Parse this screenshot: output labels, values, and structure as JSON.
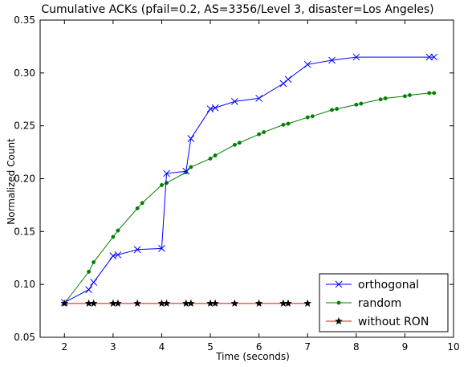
{
  "chart_data": {
    "type": "line",
    "title": "Cumulative ACKs (pfail=0.2, AS=3356/Level 3, disaster=Los Angeles)",
    "xlabel": "Time (seconds)",
    "ylabel": "Normalized Count",
    "xlim": [
      1.5,
      10
    ],
    "ylim": [
      0.05,
      0.35
    ],
    "xticks": [
      2,
      3,
      4,
      5,
      6,
      7,
      8,
      9,
      10
    ],
    "yticks": [
      0.05,
      0.1,
      0.15,
      0.2,
      0.25,
      0.3,
      0.35
    ],
    "xtick_labels": [
      "2",
      "3",
      "4",
      "5",
      "6",
      "7",
      "8",
      "9",
      "10"
    ],
    "ytick_labels": [
      "0.05",
      "0.10",
      "0.15",
      "0.20",
      "0.25",
      "0.30",
      "0.35"
    ],
    "grid": false,
    "legend_position": "lower-right",
    "series": [
      {
        "name": "orthogonal",
        "color": "#0000ff",
        "marker": "x",
        "x": [
          2.0,
          2.5,
          2.6,
          3.0,
          3.1,
          3.5,
          4.0,
          4.1,
          4.5,
          4.6,
          5.0,
          5.1,
          5.5,
          6.0,
          6.5,
          6.6,
          7.0,
          7.5,
          8.0,
          9.5,
          9.6
        ],
        "y": [
          0.083,
          0.095,
          0.102,
          0.127,
          0.128,
          0.133,
          0.134,
          0.205,
          0.207,
          0.238,
          0.266,
          0.267,
          0.273,
          0.276,
          0.29,
          0.294,
          0.308,
          0.312,
          0.315,
          0.315,
          0.315
        ]
      },
      {
        "name": "random",
        "color": "#008000",
        "marker": "dot",
        "x": [
          2.0,
          2.5,
          2.6,
          3.0,
          3.1,
          3.5,
          3.6,
          4.0,
          4.1,
          4.5,
          4.6,
          5.0,
          5.1,
          5.5,
          5.6,
          6.0,
          6.1,
          6.5,
          6.6,
          7.0,
          7.1,
          7.5,
          7.6,
          8.0,
          8.1,
          8.5,
          8.6,
          9.0,
          9.1,
          9.5,
          9.6
        ],
        "y": [
          0.082,
          0.112,
          0.121,
          0.145,
          0.151,
          0.172,
          0.177,
          0.194,
          0.196,
          0.206,
          0.211,
          0.219,
          0.222,
          0.232,
          0.234,
          0.242,
          0.244,
          0.251,
          0.252,
          0.258,
          0.259,
          0.265,
          0.266,
          0.27,
          0.271,
          0.275,
          0.276,
          0.278,
          0.279,
          0.281,
          0.281
        ]
      },
      {
        "name": "without RON",
        "color": "#ff0000",
        "marker": "star",
        "x": [
          2.0,
          2.5,
          2.6,
          3.0,
          3.1,
          3.5,
          4.0,
          4.1,
          4.5,
          4.6,
          5.0,
          5.1,
          5.5,
          6.0,
          6.5,
          6.6,
          7.0
        ],
        "y": [
          0.082,
          0.082,
          0.082,
          0.082,
          0.082,
          0.082,
          0.082,
          0.082,
          0.082,
          0.082,
          0.082,
          0.082,
          0.082,
          0.082,
          0.082,
          0.082,
          0.082
        ]
      }
    ]
  }
}
